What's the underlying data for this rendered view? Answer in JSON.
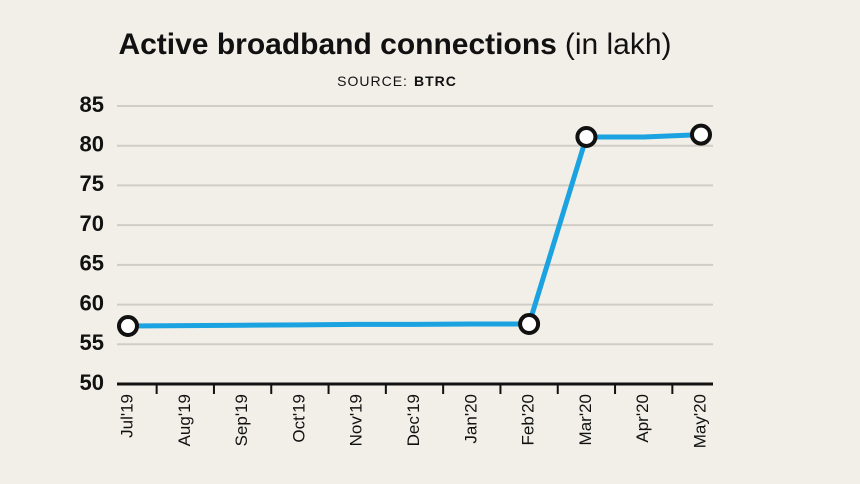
{
  "chart_data": {
    "type": "line",
    "title": "Active broadband connections",
    "title_unit": "(in lakh)",
    "source_label": "SOURCE:",
    "source": "BTRC",
    "categories": [
      "Jul'19",
      "Aug'19",
      "Sep'19",
      "Oct'19",
      "Nov'19",
      "Dec'19",
      "Jan'20",
      "Feb'20",
      "Mar'20",
      "Apr'20",
      "May'20"
    ],
    "series": [
      {
        "name": "Active broadband connections",
        "color": "#1aa3e0",
        "values": [
          57.3,
          57.35,
          57.4,
          57.45,
          57.5,
          57.5,
          57.55,
          57.55,
          81.1,
          81.1,
          81.4
        ]
      }
    ],
    "marker_indices": [
      0,
      7,
      8,
      10
    ],
    "ylim": [
      50,
      85
    ],
    "yticks": [
      50,
      55,
      60,
      65,
      70,
      75,
      80,
      85
    ],
    "grid": true
  }
}
